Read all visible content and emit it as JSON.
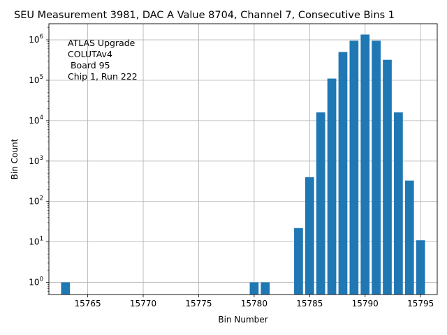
{
  "chart_data": {
    "type": "bar",
    "title": "SEU Measurement 3981, DAC A Value 8704, Channel 7, Consecutive Bins 1",
    "xlabel": "Bin Number",
    "ylabel": "Bin Count",
    "yscale": "log",
    "xlim": [
      15761.5,
      15796.5
    ],
    "ylim": [
      0.5,
      2500000
    ],
    "grid": true,
    "bar_color": "#1f77b4",
    "annotation": [
      "ATLAS Upgrade",
      "COLUTAv4",
      " Board 95",
      "Chip 1, Run 222"
    ],
    "x_ticks": [
      15765,
      15770,
      15775,
      15780,
      15785,
      15790,
      15795
    ],
    "y_ticks": [
      {
        "value": 1,
        "base": "10",
        "exp": "0"
      },
      {
        "value": 10,
        "base": "10",
        "exp": "1"
      },
      {
        "value": 100,
        "base": "10",
        "exp": "2"
      },
      {
        "value": 1000,
        "base": "10",
        "exp": "3"
      },
      {
        "value": 10000,
        "base": "10",
        "exp": "4"
      },
      {
        "value": 100000,
        "base": "10",
        "exp": "5"
      },
      {
        "value": 1000000,
        "base": "10",
        "exp": "6"
      }
    ],
    "x": [
      15763,
      15780,
      15781,
      15784,
      15785,
      15786,
      15787,
      15788,
      15789,
      15790,
      15791,
      15792,
      15793,
      15794,
      15795
    ],
    "values": [
      1,
      1,
      1,
      22,
      400,
      16000,
      110000,
      500000,
      950000,
      1350000,
      950000,
      320000,
      16000,
      330,
      11
    ]
  }
}
